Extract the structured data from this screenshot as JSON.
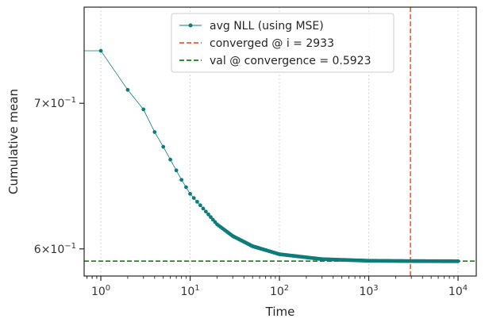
{
  "chart_data": {
    "type": "line",
    "title": "",
    "xlabel": "Time",
    "ylabel": "Cumulative mean",
    "x_scale": "log",
    "y_scale": "log",
    "xlim": [
      0.65,
      16000
    ],
    "ylim": [
      0.583,
      0.775
    ],
    "x_ticks": [
      {
        "value": 1,
        "base": "10",
        "exp": "0"
      },
      {
        "value": 10,
        "base": "10",
        "exp": "1"
      },
      {
        "value": 100,
        "base": "10",
        "exp": "2"
      },
      {
        "value": 1000,
        "base": "10",
        "exp": "3"
      },
      {
        "value": 10000,
        "base": "10",
        "exp": "4"
      }
    ],
    "y_ticks": [
      {
        "value": 0.6,
        "mant": "6",
        "exp": "−1"
      },
      {
        "value": 0.7,
        "mant": "7",
        "exp": "−1"
      }
    ],
    "grid": {
      "x": "dotted",
      "y": "off"
    },
    "legend_position": "top-center",
    "series": [
      {
        "name": "avg NLL (using MSE)",
        "color": "#0e7c7b",
        "marker": "dot",
        "start_value": 0.74,
        "asymptote": 0.5923,
        "decay": 0.36,
        "n_points": 10000,
        "points": [
          [
            1,
            0.74
          ],
          [
            2,
            0.71
          ],
          [
            3,
            0.6955
          ],
          [
            4,
            0.679
          ],
          [
            5,
            0.6685
          ],
          [
            6,
            0.6595
          ],
          [
            7,
            0.652
          ],
          [
            8,
            0.6455
          ],
          [
            9,
            0.6405
          ],
          [
            10,
            0.636
          ],
          [
            20,
            0.6158
          ],
          [
            30,
            0.6082
          ],
          [
            50,
            0.6017
          ],
          [
            100,
            0.5966
          ],
          [
            300,
            0.5935
          ],
          [
            1000,
            0.5925
          ],
          [
            2933,
            0.5923
          ],
          [
            10000,
            0.5922
          ]
        ]
      }
    ],
    "reference_lines": [
      {
        "name": "converged @ i = 2933",
        "orientation": "vertical",
        "value": 2933,
        "color": "#ee5a37",
        "style": "dashed"
      },
      {
        "name": "val @ convergence = 0.5923",
        "orientation": "horizontal",
        "value": 0.5923,
        "color": "#118011",
        "style": "dashed"
      }
    ]
  }
}
